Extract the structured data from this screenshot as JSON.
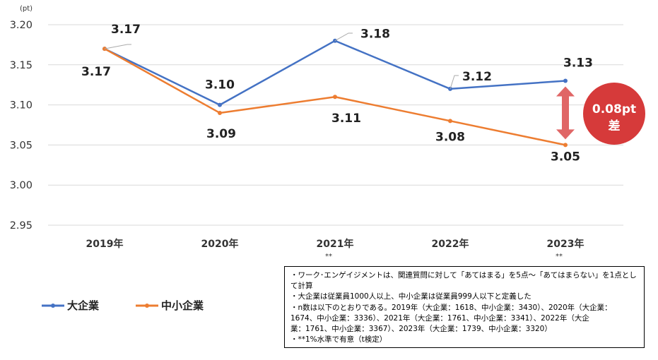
{
  "chart_data": {
    "type": "line",
    "unit": "(pt)",
    "categories": [
      "2019年",
      "2020年",
      "2021年",
      "2022年",
      "2023年"
    ],
    "significance": [
      "",
      "",
      "**",
      "",
      "**"
    ],
    "ylim": [
      2.95,
      3.2
    ],
    "yticks": [
      "3.20",
      "3.15",
      "3.10",
      "3.05",
      "3.00",
      "2.95"
    ],
    "grid": true,
    "legend_position": "bottom-left",
    "series": [
      {
        "name": "大企業",
        "values": [
          3.17,
          3.1,
          3.18,
          3.12,
          3.13
        ],
        "labels": [
          "3.17",
          "3.10",
          "3.18",
          "3.12",
          "3.13"
        ],
        "color": "#4472C4"
      },
      {
        "name": "中小企業",
        "values": [
          3.17,
          3.09,
          3.11,
          3.08,
          3.05
        ],
        "labels": [
          "3.17",
          "3.09",
          "3.11",
          "3.08",
          "3.05"
        ],
        "color": "#ED7D31"
      }
    ],
    "callout": {
      "line1": "0.08pt",
      "line2": "差",
      "color": "#D63A3A",
      "arrow_color": "#E06666"
    }
  },
  "notes": [
    "・ワーク･エンゲイジメントは、関連質問に対して「あてはまる」を5点～「あてはまらない」を1点として計算",
    "・大企業は従業員1000人以上、中小企業は従業員999人以下と定義した",
    "・n数は以下のとおりである。2019年（大企業：1618、中小企業：3430）、2020年（大企業：",
    "1674、中小企業：3336）、2021年（大企業：1761、中小企業：3341）、2022年（大企",
    "業：1761、中小企業：3367）、2023年（大企業：1739、中小企業：3320）",
    "・**1%水準で有意（t検定）"
  ]
}
